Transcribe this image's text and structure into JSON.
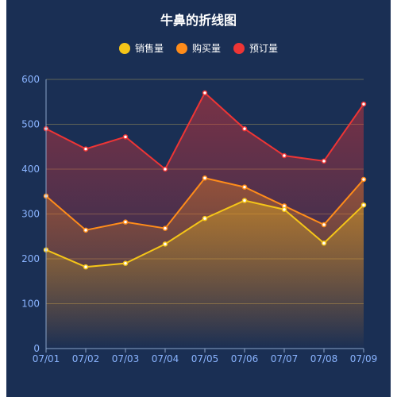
{
  "chart_data": {
    "type": "area",
    "title": "牛鼻的折线图",
    "categories": [
      "07/01",
      "07/02",
      "07/03",
      "07/04",
      "07/05",
      "07/06",
      "07/07",
      "07/08",
      "07/09"
    ],
    "ylim": [
      0,
      600
    ],
    "yticks": [
      0,
      100,
      200,
      300,
      400,
      500,
      600
    ],
    "grid": true,
    "legend_position": "top-center",
    "series": [
      {
        "name": "销售量",
        "color": "#f5c518",
        "values": [
          220,
          182,
          190,
          233,
          290,
          330,
          310,
          235,
          320
        ]
      },
      {
        "name": "购买量",
        "color": "#ff8c1a",
        "values": [
          340,
          264,
          282,
          268,
          380,
          360,
          318,
          276,
          377
        ]
      },
      {
        "name": "预订量",
        "color": "#ee3535",
        "values": [
          490,
          445,
          472,
          400,
          570,
          490,
          430,
          418,
          545
        ]
      }
    ]
  }
}
